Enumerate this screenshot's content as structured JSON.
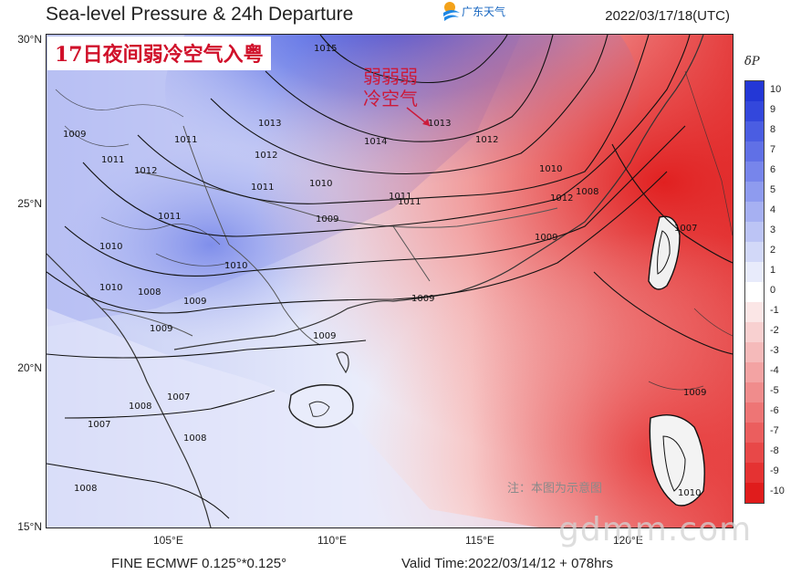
{
  "header": {
    "title": "Sea-level Pressure & 24h Departure",
    "datetime": "2022/03/17/18(UTC)",
    "logo_text": "广东天气"
  },
  "caption": "17日夜间弱冷空气入粤",
  "annotation": [
    "弱弱弱",
    "冷空气"
  ],
  "note": "注：本图为示意图",
  "footer": {
    "model": "FINE ECMWF 0.125°*0.125°",
    "valid": "Valid Time:2022/03/14/12 + 078hrs"
  },
  "watermark": "gdmm.com",
  "axes": {
    "lat": [
      "30°N",
      "25°N",
      "20°N",
      "15°N"
    ],
    "lon": [
      "105°E",
      "110°E",
      "115°E",
      "120°E"
    ]
  },
  "colorbar": {
    "title": "δP",
    "labels": [
      "10",
      "9",
      "8",
      "7",
      "6",
      "5",
      "4",
      "3",
      "2",
      "1",
      "0",
      "-1",
      "-2",
      "-3",
      "-4",
      "-5",
      "-6",
      "-7",
      "-8",
      "-9",
      "-10"
    ],
    "colors": [
      "#2337d6",
      "#3347dc",
      "#4a5de2",
      "#6070e6",
      "#7785eb",
      "#8e9bef",
      "#a6b0f2",
      "#bcc4f5",
      "#d2d8f8",
      "#e8ebfb",
      "#ffffff",
      "#fbe6e6",
      "#f8d0d0",
      "#f5baba",
      "#f3a3a3",
      "#f08c8c",
      "#ee7575",
      "#eb5e5e",
      "#e84848",
      "#e53232",
      "#e01c1c"
    ]
  },
  "contour_labels": [
    "1015",
    "1014",
    "1013",
    "1013",
    "1012",
    "1012",
    "1012",
    "1011",
    "1011",
    "1011",
    "1011",
    "1011",
    "1010",
    "1010",
    "1010",
    "1010",
    "1010",
    "1010",
    "1009",
    "1009",
    "1009",
    "1009",
    "1009",
    "1009",
    "1009",
    "1008",
    "1008",
    "1008",
    "1008",
    "1008",
    "1007",
    "1007",
    "1007",
    "1011",
    "1012",
    "1009"
  ]
}
